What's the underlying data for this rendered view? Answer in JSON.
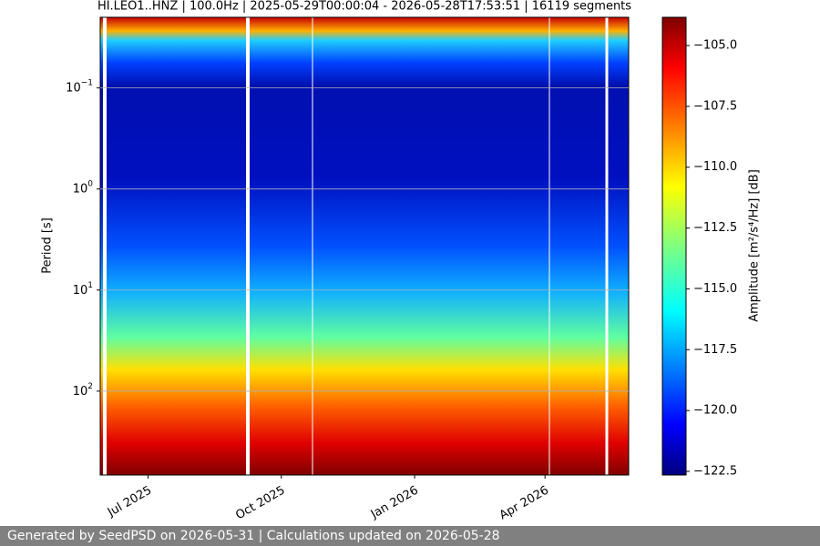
{
  "chart_data": {
    "type": "spectrogram",
    "title": "HI.LEO1..HNZ | 100.0Hz | 2025-05-29T00:00:04 - 2026-05-28T17:53:51 | 16119 segments",
    "ylabel": "Period [s]",
    "log_y": true,
    "y_inverted": true,
    "ylim": [
      0.02,
      676
    ],
    "yticks": [
      {
        "value": 0.1,
        "label": "10",
        "exponent": "−1"
      },
      {
        "value": 1,
        "label": "10",
        "exponent": "0"
      },
      {
        "value": 10,
        "label": "10",
        "exponent": "1"
      },
      {
        "value": 100,
        "label": "10",
        "exponent": "2"
      }
    ],
    "grid": true,
    "xlim": [
      "2025-05-29T00:00:04",
      "2026-05-28T17:53:51"
    ],
    "xticks": [
      {
        "value": "2025-07-01",
        "label": "Jul 2025"
      },
      {
        "value": "2025-10-01",
        "label": "Oct 2025"
      },
      {
        "value": "2026-01-01",
        "label": "Jan 2026"
      },
      {
        "value": "2026-04-01",
        "label": "Apr 2026"
      }
    ],
    "colormap": "jet",
    "colorbar_label": "Amplitude [m²/s⁴/Hz] [dB]",
    "clim": [
      -122.65,
      -103.84
    ],
    "cticks": [
      {
        "value": -105,
        "label": "−105.0"
      },
      {
        "value": -107.5,
        "label": "−107.5"
      },
      {
        "value": -110,
        "label": "−110.0"
      },
      {
        "value": -112.5,
        "label": "−112.5"
      },
      {
        "value": -115,
        "label": "−115.0"
      },
      {
        "value": -117.5,
        "label": "−117.5"
      },
      {
        "value": -120,
        "label": "−120.0"
      },
      {
        "value": -122.5,
        "label": "−122.5"
      }
    ]
  },
  "footer": "Generated by SeedPSD on 2026-05-31 | Calculations updated on 2026-05-28"
}
